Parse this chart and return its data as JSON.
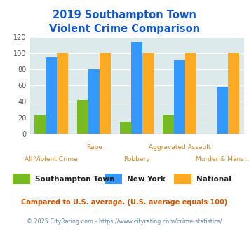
{
  "title_line1": "2019 Southampton Town",
  "title_line2": "Violent Crime Comparison",
  "categories": [
    "All Violent Crime",
    "Rape",
    "Robbery",
    "Aggravated Assault",
    "Murder & Mans..."
  ],
  "series": {
    "Southampton Town": [
      24,
      42,
      15,
      24,
      0
    ],
    "New York": [
      95,
      80,
      114,
      91,
      58
    ],
    "National": [
      100,
      100,
      100,
      100,
      100
    ]
  },
  "colors": {
    "Southampton Town": "#77bb22",
    "New York": "#3399ff",
    "National": "#ffaa22"
  },
  "ylim": [
    0,
    120
  ],
  "yticks": [
    0,
    20,
    40,
    60,
    80,
    100,
    120
  ],
  "background_color": "#ddeaec",
  "title_color": "#1155cc",
  "xlabel_top_color": "#cc8833",
  "xlabel_bot_color": "#cc8833",
  "legend_label_color": "#222222",
  "footnote1": "Compared to U.S. average. (U.S. average equals 100)",
  "footnote2": "© 2025 CityRating.com - https://www.cityrating.com/crime-statistics/",
  "footnote1_color": "#cc5500",
  "footnote2_color": "#6688aa",
  "x_labels_top": [
    "",
    "Rape",
    "",
    "Aggravated Assault",
    ""
  ],
  "x_labels_bot": [
    "All Violent Crime",
    "",
    "Robbery",
    "",
    "Murder & Mans..."
  ]
}
